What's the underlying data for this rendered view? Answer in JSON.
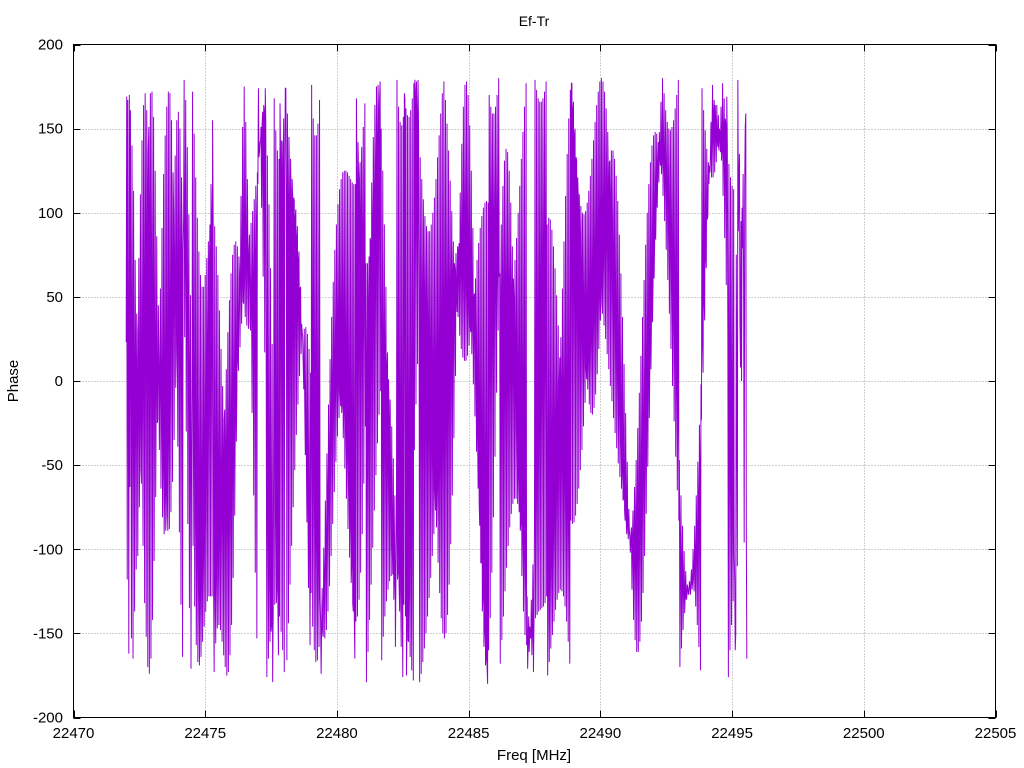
{
  "chart_data": {
    "type": "line",
    "title": "Ef-Tr",
    "xlabel": "Freq [MHz]",
    "ylabel": "Phase",
    "xlim": [
      22470,
      22505
    ],
    "ylim": [
      -200,
      200
    ],
    "xticks": [
      22470,
      22475,
      22480,
      22485,
      22490,
      22495,
      22500,
      22505
    ],
    "yticks": [
      -200,
      -150,
      -100,
      -50,
      0,
      50,
      100,
      150,
      200
    ],
    "grid": true,
    "series_color": "#9400d3",
    "series": [
      {
        "x_start": 22472.0,
        "x_step": 0.02,
        "values": [
          23,
          169,
          -118,
          167,
          7,
          -162,
          170,
          -63,
          161,
          23,
          -153,
          140,
          28,
          -165,
          113,
          -9,
          -137,
          72,
          8,
          -112,
          40,
          29,
          -104,
          -3,
          73,
          -75,
          -21,
          111,
          -53,
          -61,
          143,
          -14,
          -98,
          164,
          33,
          -132,
          171,
          82,
          -152,
          161,
          117,
          -170,
          137,
          151,
          -174,
          101,
          171,
          -165,
          67,
          172,
          -142,
          37,
          157,
          -107,
          14,
          125,
          -69,
          -5,
          86,
          -25,
          -23,
          45,
          14,
          -41,
          8,
          55,
          -64,
          -22,
          91,
          -81,
          -49,
          123,
          -91,
          -68,
          146,
          -89,
          -80,
          163,
          -69,
          -89,
          172,
          -31,
          -88,
          171,
          11,
          -78,
          155,
          59,
          -60,
          124,
          101,
          -35,
          75,
          134,
          -4,
          16,
          155,
          26,
          -39,
          160,
          53,
          -90,
          150,
          77,
          -133,
          121,
          91,
          -164,
          78,
          96,
          179,
          26,
          89,
          167,
          -30,
          70,
          139,
          -85,
          38,
          99,
          -135,
          -6,
          51,
          -171,
          -54,
          6,
          172,
          -98,
          -38,
          147,
          -134,
          -74,
          121,
          -157,
          -103,
          97,
          -167,
          -121,
          77,
          -169,
          -127,
          63,
          -164,
          -119,
          56,
          -155,
          -99,
          56,
          -146,
          -68,
          63,
          -137,
          -26,
          73,
          -131,
          22,
          83,
          -128,
          71,
          93,
          -128,
          117,
          98,
          -128,
          155,
          98,
          -127,
          -173,
          92,
          -123,
          -156,
          80,
          -116,
          -147,
          63,
          -104,
          -145,
          42,
          -87,
          -148,
          19,
          -66,
          -155,
          -3,
          -42,
          -163,
          -23,
          -17,
          -170,
          -39,
          7,
          -175,
          -48,
          29,
          -173,
          -52,
          48,
          -163,
          -50,
          64,
          -145,
          -43,
          75,
          -117,
          -34,
          81,
          -80,
          -22,
          83,
          -36,
          -8,
          80,
          13,
          6,
          74,
          64,
          20,
          65,
          110,
          34,
          56,
          151,
          47,
          46,
          175,
          58,
          38,
          154,
          69,
          33,
          120,
          78,
          31,
          77,
          87,
          35,
          30,
          94,
          44,
          -19,
          101,
          58,
          -68,
          108,
          76,
          -114,
          116,
          97,
          -153,
          124,
          117,
          174,
          133,
          136,
          142,
          142,
          151,
          103,
          153,
          160,
          62,
          164,
          161,
          17,
          174,
          153,
          -27,
          -176,
          134,
          -71,
          -165,
          105,
          -113,
          -155,
          67,
          -149,
          -145,
          22,
          -179,
          -138,
          -28,
          168,
          -133,
          -78,
          149,
          -132,
          -124,
          137,
          -134,
          -163,
          132,
          -140,
          165,
          134,
          -149,
          143,
          142,
          -160,
          128,
          156,
          -173,
          118,
          174,
          174,
          112,
          -166,
          159,
          110,
          -144,
          145,
          109,
          -121,
          132,
          109,
          -98,
          120,
          109,
          -75,
          109,
          107,
          -53,
          98,
          102,
          -32,
          86,
          92,
          -14,
          72,
          77,
          3,
          55,
          56,
          16,
          34,
          29,
          26,
          10,
          -5,
          31,
          -17,
          -44,
          32,
          -45,
          -84,
          28,
          -74,
          -123,
          19,
          -101,
          -157,
          5,
          -126,
          176,
          -14,
          -146,
          156,
          -36,
          -160,
          146,
          -61,
          -167,
          146,
          -86,
          -166,
          153,
          -109,
          -158,
          167,
          -129,
          -143,
          -174,
          -144,
          -123,
          -150,
          -152,
          -99,
          -123,
          -153,
          -71,
          -96,
          -148,
          -43,
          -70,
          -137,
          -14,
          -47,
          -122,
          13,
          -27,
          -104,
          38,
          -12,
          -85,
          59,
          -2,
          -66,
          78,
          4,
          -48,
          93,
          5,
          -33,
          105,
          1,
          -22,
          114,
          -7,
          -15,
          120,
          -19,
          -14,
          124,
          -34,
          -17,
          125,
          -52,
          -27,
          125,
          -70,
          -41,
          124,
          -88,
          -61,
          122,
          -105,
          -84,
          120,
          -120,
          -110,
          118,
          -132,
          -137,
          117,
          -140,
          -165,
          117,
          -143,
          168,
          119,
          -140,
          142,
          123,
          -130,
          120,
          130,
          -114,
          100,
          139,
          -91,
          85,
          151,
          -61,
          75,
          165,
          -27,
          70,
          -179,
          11,
          70,
          -161,
          49,
          74,
          -142,
          85,
          83,
          -121,
          118,
          95,
          -99,
          145,
          110,
          -77,
          164,
          127,
          -56,
          175,
          145,
          -37,
          176,
          162,
          -20,
          168,
          178,
          -6,
          150,
          -166,
          4,
          125,
          -152,
          10,
          93,
          -140,
          12,
          56,
          -131,
          9,
          17,
          -124,
          1,
          -22,
          -119,
          -11,
          -61,
          -116,
          -27,
          -97,
          -115,
          -46,
          -130,
          -115,
          -68,
          -158,
          -116,
          -91,
          179,
          -118,
          -114,
          163,
          -121,
          -137,
          154,
          -124,
          -158,
          152,
          -128,
          -176,
          157,
          -133,
          171,
          168,
          -140,
          162,
          -175,
          -147,
          158,
          -154,
          -155,
          157,
          -128,
          -164,
          161,
          -100,
          -172,
          168,
          -70,
          -178,
          177,
          -41,
          179,
          172,
          -14,
          178,
          160,
          10,
          179,
          147,
          29,
          -179,
          133,
          43,
          -174,
          120,
          51,
          -167,
          108,
          52,
          -159,
          98,
          47,
          -150,
          92,
          37,
          -140,
          89,
          22,
          -129,
          89,
          3,
          -117,
          93,
          -18,
          -104,
          100,
          -41,
          -91,
          109,
          -64,
          -77,
          120,
          -87,
          -62,
          133,
          -108,
          -48,
          146,
          -126,
          -33,
          159,
          -141,
          -19,
          171,
          -150,
          -5,
          178,
          -153,
          8,
          167,
          -150,
          21,
          153,
          -139,
          33,
          137,
          -121,
          44,
          119,
          -97,
          54,
          101,
          -68,
          63,
          83,
          -34,
          70,
          66,
          3,
          76,
          51,
          41,
          80,
          38,
          78,
          82,
          27,
          112,
          82,
          19,
          141,
          80,
          14,
          163,
          75,
          12,
          176,
          68,
          12,
          178,
          58,
          15,
          170,
          46,
          21,
          152,
          32,
          29,
          125,
          16,
          39,
          91,
          -2,
          50,
          52,
          -21,
          61,
          10,
          -42,
          72,
          -32,
          -64,
          82,
          -72,
          -86,
          91,
          -108,
          -108,
          98,
          -137,
          -129,
          103,
          -158,
          -149,
          106,
          -169,
          -166,
          107,
          -170,
          -180,
          106,
          -160,
          170,
          103,
          -141,
          163,
          98,
          -114,
          159,
          92,
          -81,
          159,
          85,
          -45,
          163,
          78,
          -7,
          170,
          70,
          30,
          180,
          62,
          64,
          -168,
          55,
          93,
          -154,
          49,
          116,
          -140,
          45,
          131,
          -125,
          42,
          138,
          -111,
          41,
          136,
          -98,
          42,
          125,
          -87,
          46,
          106,
          -79,
          52,
          80,
          -73,
          61,
          49,
          -70,
          72,
          14,
          -70,
          85,
          -22,
          -73,
          100,
          -57,
          -78,
          116,
          -89,
          -85,
          132,
          -116,
          -94,
          148,
          -137,
          -105,
          163,
          -151,
          -116,
          177,
          -157,
          -128,
          -171,
          -155,
          -140,
          -161,
          -146,
          -152,
          -153,
          -130,
          -163,
          -148,
          -109,
          -173,
          -144,
          -83,
          179,
          -141,
          -55,
          173,
          -139,
          -26,
          168,
          -137,
          2,
          166,
          -136,
          28,
          166,
          -135,
          51,
          168,
          -134,
          70,
          172,
          -132,
          84,
          178,
          -128,
          93,
          -175,
          -123,
          97,
          -167,
          -115,
          96,
          -159,
          -104,
          90,
          -151,
          -90,
          80,
          -143,
          -73,
          67,
          -136,
          -52,
          51,
          -130,
          -28,
          33,
          -126,
          -2,
          14,
          -124,
          26,
          -5,
          -125,
          55,
          -24,
          -128,
          83,
          -41,
          -134,
          110,
          -56,
          -143,
          135,
          -68,
          -155,
          156,
          -77,
          -168,
          173,
          -83,
          177,
          177,
          -85,
          162,
          166,
          -84,
          147,
          150,
          -80,
          133,
          131,
          -73,
          121,
          109,
          -64,
          111,
          87,
          -53,
          104,
          65,
          -41,
          100,
          43,
          -27,
          99,
          24,
          -13,
          101,
          8,
          1,
          106,
          -5,
          14,
          113,
          -14,
          26,
          122,
          -19,
          36,
          132,
          -20,
          44,
          143,
          -16,
          49,
          154,
          -8,
          52,
          164,
          4,
          52,
          172,
          19,
          50,
          178,
          36,
          46,
          180,
          55,
          40,
          178,
          73,
          33,
          172,
          91,
          25,
          162,
          108,
          16,
          148,
          121,
          7,
          130,
          131,
          -3,
          109,
          137,
          -12,
          86,
          137,
          -22,
          62,
          132,
          -31,
          37,
          122,
          -40,
          12,
          107,
          -49,
          -12,
          87,
          -57,
          -34,
          64,
          -64,
          -54,
          38,
          -71,
          -70,
          10,
          -77,
          -83,
          -19,
          -82,
          -91,
          -48,
          -86,
          -94,
          -76,
          -89,
          -93,
          -102,
          -91,
          -87,
          -124,
          -92,
          -77,
          -142,
          -91,
          -63,
          -154,
          -89,
          -47,
          -161,
          -85,
          -28,
          -161,
          -80,
          -7,
          -155,
          -72,
          15,
          -143,
          -63,
          38,
          -126,
          -51,
          60,
          -104,
          -37,
          81,
          -79,
          -21,
          100,
          -51,
          -3,
          117,
          -22,
          16,
          130,
          7,
          37,
          140,
          35,
          59,
          146,
          61,
          82,
          148,
          84,
          105,
          147,
          103,
          127,
          142,
          118,
          148,
          134,
          128,
          166,
          123,
          133,
          180,
          110,
          133,
          171,
          95,
          128,
          161,
          78,
          119,
          154,
          60,
          106,
          150,
          40,
          89,
          149,
          19,
          69,
          151,
          -3,
          47,
          155,
          -24,
          23,
          162,
          -45,
          -1,
          170,
          -65,
          -25,
          179,
          -83,
          -47,
          -170,
          -99,
          -68,
          -159,
          -112,
          -86,
          -148,
          -121,
          -101,
          -138,
          -127,
          -113,
          -130,
          -129,
          -121,
          -123,
          -127,
          -126,
          -119,
          -121,
          -127,
          -118,
          -112,
          -124,
          -120,
          -100,
          -117,
          -125,
          -86,
          -106,
          -134,
          -68,
          -91,
          -145,
          -48,
          -72,
          -158,
          -26,
          -49,
          -172,
          -2,
          -23,
          174,
          23,
          5,
          161,
          48,
          36,
          149,
          73,
          67,
          138,
          96,
          98,
          130,
          117,
          128,
          124,
          135,
          154,
          121,
          149,
          176,
          121,
          159,
          167,
          124,
          164,
          153,
          130,
          164,
          143,
          139,
          158,
          137,
          150,
          147,
          136,
          163,
          131,
          139,
          177,
          110,
          146,
          168,
          85,
          156,
          153,
          57,
          169,
          140,
          25,
          -176,
          129,
          -8,
          -160,
          121,
          -42,
          -145,
          116,
          -74,
          -131,
          114,
          -103,
          -118,
          -160,
          -150,
          75,
          -13,
          -110,
          179,
          89,
          120,
          135,
          35,
          8,
          95,
          0,
          103,
          79,
          123,
          51,
          -96,
          115,
          151,
          159,
          -87,
          -165
        ]
      }
    ]
  }
}
